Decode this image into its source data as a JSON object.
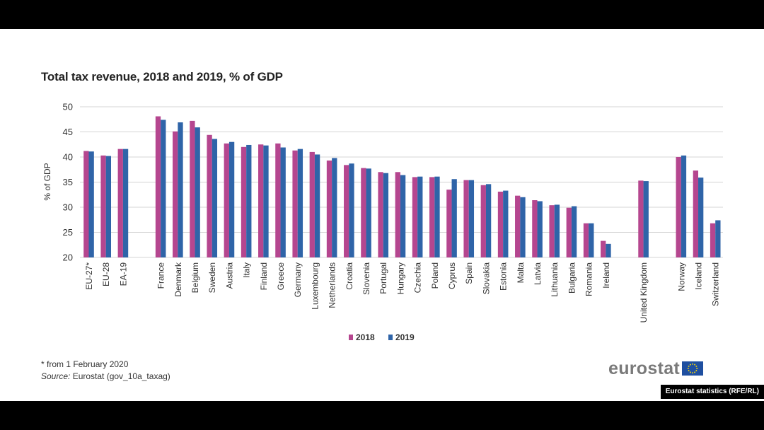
{
  "chart_data": {
    "type": "bar",
    "title": "Total tax revenue, 2018 and 2019, % of GDP",
    "ylabel": "% of GDP",
    "xlabel": "",
    "ylim": [
      20,
      50
    ],
    "yticks": [
      20,
      25,
      30,
      35,
      40,
      45,
      50
    ],
    "grid": true,
    "legend_position": "bottom-center",
    "categories": [
      "EU-27*",
      "EU-28",
      "EA-19",
      "France",
      "Denmark",
      "Belgium",
      "Sweden",
      "Austria",
      "Italy",
      "Finland",
      "Greece",
      "Germany",
      "Luxembourg",
      "Netherlands",
      "Croatia",
      "Slovenia",
      "Portugal",
      "Hungary",
      "Czechia",
      "Poland",
      "Cyprus",
      "Spain",
      "Slovakia",
      "Estonia",
      "Malta",
      "Latvia",
      "Lithuania",
      "Bulgaria",
      "Romania",
      "Ireland",
      "United Kingdom",
      "Norway",
      "Iceland",
      "Switzerland"
    ],
    "groups": [
      [
        0,
        3
      ],
      [
        3,
        30
      ],
      [
        30,
        31
      ],
      [
        31,
        34
      ]
    ],
    "series": [
      {
        "name": "2018",
        "color": "#b5468f",
        "values": [
          41.2,
          40.3,
          41.6,
          48.1,
          45.1,
          47.2,
          44.4,
          42.7,
          42.0,
          42.5,
          42.7,
          41.3,
          41.0,
          39.3,
          38.4,
          37.8,
          37.0,
          37.0,
          36.0,
          36.0,
          33.5,
          35.4,
          34.4,
          33.1,
          32.3,
          31.4,
          30.4,
          29.9,
          26.8,
          23.3,
          35.3,
          40.0,
          37.3,
          26.8
        ]
      },
      {
        "name": "2019",
        "color": "#2f64a8",
        "values": [
          41.1,
          40.2,
          41.6,
          47.4,
          46.9,
          45.9,
          43.6,
          43.0,
          42.4,
          42.3,
          41.9,
          41.6,
          40.5,
          39.8,
          38.7,
          37.7,
          36.8,
          36.4,
          36.1,
          36.1,
          35.6,
          35.4,
          34.6,
          33.3,
          32.0,
          31.2,
          30.5,
          30.2,
          26.8,
          22.7,
          35.2,
          40.3,
          35.9,
          27.4
        ]
      }
    ]
  },
  "footnote": {
    "asterisk_note": "* from 1 February 2020",
    "source_label": "Source:",
    "source_text": " Eurostat (gov_10a_taxag)"
  },
  "logo": {
    "wordmark": "eurostat",
    "flag_icon": "eu-flag-icon",
    "flag_color": "#1f4fa0",
    "star_color": "#ffdd00"
  },
  "credit": "Eurostat statistics (RFE/RL)"
}
